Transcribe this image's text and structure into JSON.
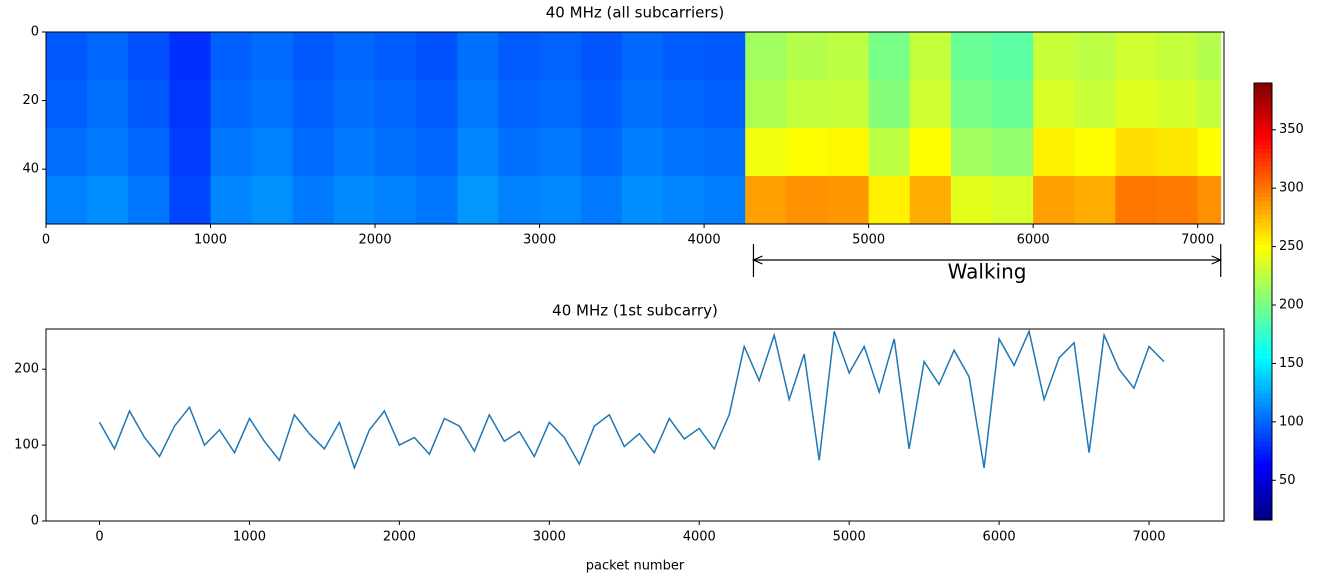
{
  "chart_data": [
    {
      "type": "heatmap",
      "title": "40 MHz (all subcarriers)",
      "xlim": [
        0,
        7160
      ],
      "ylim": [
        56,
        0
      ],
      "xticks": [
        0,
        1000,
        2000,
        3000,
        4000,
        5000,
        6000,
        7000
      ],
      "yticks": [
        0,
        20,
        40
      ],
      "x_bins": [
        0,
        250,
        500,
        750,
        1000,
        1250,
        1500,
        1750,
        2000,
        2250,
        2500,
        2750,
        3000,
        3250,
        3500,
        3750,
        4000,
        4250,
        4500,
        4750,
        5000,
        5250,
        5500,
        5750,
        6000,
        6250,
        6500,
        6750,
        7000,
        7140
      ],
      "y_bins": [
        0,
        14,
        28,
        42,
        56
      ],
      "z": [
        [
          95,
          100,
          92,
          80,
          98,
          102,
          95,
          100,
          97,
          93,
          104,
          96,
          99,
          94,
          101,
          97,
          95,
          215,
          222,
          225,
          200,
          228,
          195,
          190,
          230,
          225,
          232,
          228,
          222
        ],
        [
          98,
          104,
          95,
          82,
          101,
          105,
          98,
          103,
          100,
          96,
          107,
          99,
          102,
          97,
          104,
          100,
          98,
          220,
          228,
          230,
          205,
          232,
          200,
          195,
          235,
          230,
          238,
          234,
          228
        ],
        [
          103,
          108,
          100,
          85,
          106,
          110,
          102,
          108,
          104,
          100,
          112,
          104,
          107,
          101,
          109,
          105,
          103,
          245,
          250,
          252,
          225,
          250,
          215,
          210,
          255,
          250,
          262,
          258,
          250
        ],
        [
          110,
          115,
          106,
          88,
          112,
          116,
          108,
          114,
          110,
          106,
          118,
          110,
          113,
          107,
          115,
          111,
          109,
          285,
          290,
          288,
          255,
          280,
          240,
          235,
          285,
          280,
          300,
          298,
          290
        ]
      ],
      "colorbar": {
        "clim": [
          16,
          390
        ],
        "ticks": [
          50,
          100,
          150,
          200,
          250,
          300,
          350
        ]
      },
      "annotation": {
        "text": "Walking",
        "xrange": [
          4300,
          7140
        ]
      }
    },
    {
      "type": "line",
      "title": "40 MHz (1st subcarry)",
      "x_label": "packet number",
      "color": "#1f77b4",
      "xlim": [
        -357,
        7500
      ],
      "ylim": [
        0,
        253
      ],
      "xticks": [
        0,
        1000,
        2000,
        3000,
        4000,
        5000,
        6000,
        7000
      ],
      "yticks": [
        0,
        100,
        200
      ],
      "x": [
        0,
        100,
        200,
        300,
        400,
        500,
        600,
        700,
        800,
        900,
        1000,
        1100,
        1200,
        1300,
        1400,
        1500,
        1600,
        1700,
        1800,
        1900,
        2000,
        2100,
        2200,
        2300,
        2400,
        2500,
        2600,
        2700,
        2800,
        2900,
        3000,
        3100,
        3200,
        3300,
        3400,
        3500,
        3600,
        3700,
        3800,
        3900,
        4000,
        4100,
        4200,
        4300,
        4400,
        4500,
        4600,
        4700,
        4800,
        4900,
        5000,
        5100,
        5200,
        5300,
        5400,
        5500,
        5600,
        5700,
        5800,
        5900,
        6000,
        6100,
        6200,
        6300,
        6400,
        6500,
        6600,
        6700,
        6800,
        6900,
        7000,
        7100
      ],
      "values": [
        130,
        95,
        145,
        110,
        85,
        125,
        150,
        100,
        120,
        90,
        135,
        105,
        80,
        140,
        115,
        95,
        130,
        70,
        120,
        145,
        100,
        110,
        88,
        135,
        125,
        92,
        140,
        105,
        118,
        85,
        130,
        110,
        75,
        125,
        140,
        98,
        115,
        90,
        135,
        108,
        122,
        95,
        140,
        230,
        185,
        245,
        160,
        220,
        80,
        250,
        195,
        230,
        170,
        240,
        95,
        210,
        180,
        225,
        190,
        70,
        240,
        205,
        250,
        160,
        215,
        235,
        90,
        245,
        200,
        175,
        230,
        210
      ]
    }
  ]
}
